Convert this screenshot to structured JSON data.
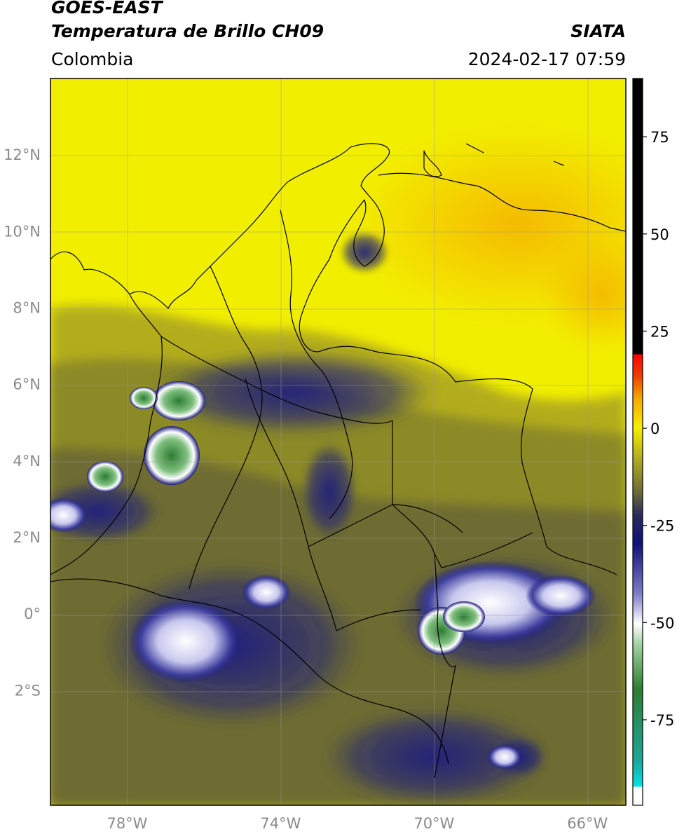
{
  "header": {
    "satellite": "GOES-EAST",
    "product": "Temperatura de Brillo CH09",
    "agency": "SIATA",
    "region": "Colombia",
    "timestamp": "2024-02-17 07:59"
  },
  "map": {
    "lon_range": [
      -80,
      -65
    ],
    "lat_range": [
      -5,
      14
    ],
    "lat_ticks": [
      {
        "value": 12,
        "label": "12°N"
      },
      {
        "value": 10,
        "label": "10°N"
      },
      {
        "value": 8,
        "label": "8°N"
      },
      {
        "value": 6,
        "label": "6°N"
      },
      {
        "value": 4,
        "label": "4°N"
      },
      {
        "value": 2,
        "label": "2°N"
      },
      {
        "value": 0,
        "label": "0°"
      },
      {
        "value": -2,
        "label": "2°S"
      }
    ],
    "lon_ticks": [
      {
        "value": -78,
        "label": "78°W"
      },
      {
        "value": -74,
        "label": "74°W"
      },
      {
        "value": -70,
        "label": "70°W"
      },
      {
        "value": -66,
        "label": "66°W"
      }
    ],
    "colors": {
      "warm": "#f2ee00",
      "very_warm": "#f5b800",
      "olive": "#8a8a22",
      "dark_olive": "#55552d",
      "navy": "#1a1a7a",
      "white": "#ffffff",
      "green": "#3a8a3a"
    }
  },
  "colorbar": {
    "ticks": [
      {
        "value": 75,
        "label": "75"
      },
      {
        "value": 50,
        "label": "50"
      },
      {
        "value": 25,
        "label": "25"
      },
      {
        "value": 0,
        "label": "0"
      },
      {
        "value": -25,
        "label": "-25"
      },
      {
        "value": -50,
        "label": "-50"
      },
      {
        "value": -75,
        "label": "-75"
      }
    ],
    "range": [
      -97,
      90
    ]
  }
}
